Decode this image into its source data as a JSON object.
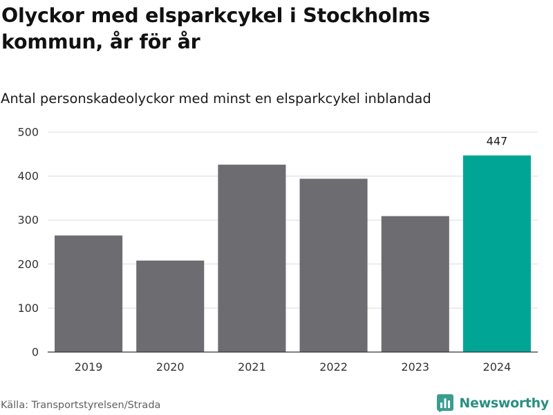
{
  "header": {
    "title": "Olyckor med elsparkcykel i Stockholms kommun, år för år",
    "subtitle": "Antal personskadeolyckor med minst en elsparkcykel inblandad"
  },
  "footer": {
    "source": "Källa: Transportstyrelsen/Strada",
    "brand": "Newsworthy",
    "brand_icon": "bar-chart-logo-icon"
  },
  "colors": {
    "bar": "#6d6c71",
    "highlight": "#00a596",
    "brand": "#2a8f82",
    "grid": "#dcdcdc",
    "axis": "#333333"
  },
  "chart_data": {
    "type": "bar",
    "categories": [
      "2019",
      "2020",
      "2021",
      "2022",
      "2023",
      "2024"
    ],
    "values": [
      265,
      208,
      426,
      394,
      309,
      447
    ],
    "highlight": "2024",
    "data_labels": [
      {
        "category": "2024",
        "text": "447"
      }
    ],
    "title": "Olyckor med elsparkcykel i Stockholms kommun, år för år",
    "subtitle": "Antal personskadeolyckor med minst en elsparkcykel inblandad",
    "xlabel": "",
    "ylabel": "",
    "ylim": [
      0,
      500
    ],
    "yticks": [
      "0",
      "100",
      "200",
      "300",
      "400",
      "500"
    ],
    "grid": true,
    "legend": "none"
  }
}
